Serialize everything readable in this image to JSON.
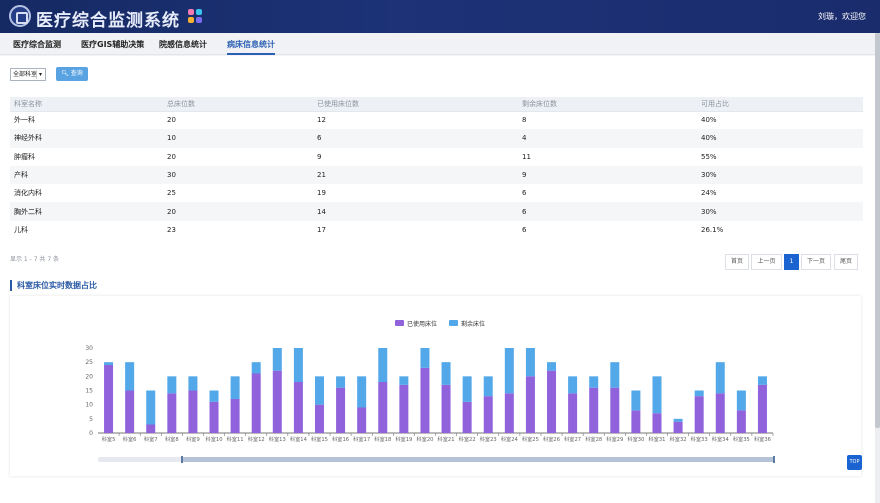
{
  "header": {
    "title": "医疗综合监测系统",
    "user": "刘璇，欢迎您",
    "colors": {
      "bg": "#1a2c6c"
    }
  },
  "tabs": [
    {
      "label": "医疗综合监测"
    },
    {
      "label": "医疗GIS辅助决策"
    },
    {
      "label": "院感信息统计"
    },
    {
      "label": "病床信息统计",
      "active": true
    }
  ],
  "filter": {
    "department_select": "全部科室",
    "query_button": "查询"
  },
  "table": {
    "headers": [
      "科室名称",
      "总床位数",
      "已使用床位数",
      "剩余床位数",
      "可用占比"
    ],
    "rows": [
      [
        "外一科",
        "20",
        "12",
        "8",
        "40%"
      ],
      [
        "神经外科",
        "10",
        "6",
        "4",
        "40%"
      ],
      [
        "肿瘤科",
        "20",
        "9",
        "11",
        "55%"
      ],
      [
        "产科",
        "30",
        "21",
        "9",
        "30%"
      ],
      [
        "消化内科",
        "25",
        "19",
        "6",
        "24%"
      ],
      [
        "胸外二科",
        "20",
        "14",
        "6",
        "30%"
      ],
      [
        "儿科",
        "23",
        "17",
        "6",
        "26.1%"
      ]
    ]
  },
  "pagination": {
    "info": "显示 1 - 7 共 7 条",
    "first": "首页",
    "prev": "上一页",
    "current": "1",
    "next": "下一页",
    "last": "尾页"
  },
  "panel_title": "科室床位实时数据占比",
  "top_button": "TOP",
  "chart_data": {
    "type": "bar",
    "stacked": true,
    "ylim": [
      0,
      30
    ],
    "yticks": [
      "0",
      "5",
      "10",
      "15",
      "20",
      "25",
      "30"
    ],
    "categories": [
      "科室5",
      "科室6",
      "科室7",
      "科室8",
      "科室9",
      "科室10",
      "科室11",
      "科室12",
      "科室13",
      "科室14",
      "科室15",
      "科室16",
      "科室17",
      "科室18",
      "科室19",
      "科室20",
      "科室21",
      "科室22",
      "科室23",
      "科室24",
      "科室25",
      "科室26",
      "科室27",
      "科室28",
      "科室29",
      "科室30",
      "科室31",
      "科室32",
      "科室33",
      "科室34",
      "科室35",
      "科室36"
    ],
    "series": [
      {
        "name": "已使用床位",
        "color": "#9063dc",
        "values": [
          24,
          15,
          3,
          14,
          15,
          11,
          12,
          21,
          22,
          18,
          10,
          16,
          9,
          18,
          17,
          23,
          17,
          11,
          13,
          14,
          20,
          22,
          14,
          16,
          16,
          8,
          7,
          4,
          13,
          14,
          8,
          17
        ]
      },
      {
        "name": "剩余床位",
        "color": "#52a8e8",
        "values": [
          1,
          10,
          12,
          6,
          5,
          4,
          8,
          4,
          8,
          12,
          10,
          4,
          11,
          12,
          3,
          7,
          8,
          9,
          7,
          16,
          10,
          3,
          6,
          4,
          9,
          7,
          13,
          1,
          2,
          11,
          7,
          3
        ]
      }
    ],
    "legend": "top-center",
    "grid": false
  }
}
